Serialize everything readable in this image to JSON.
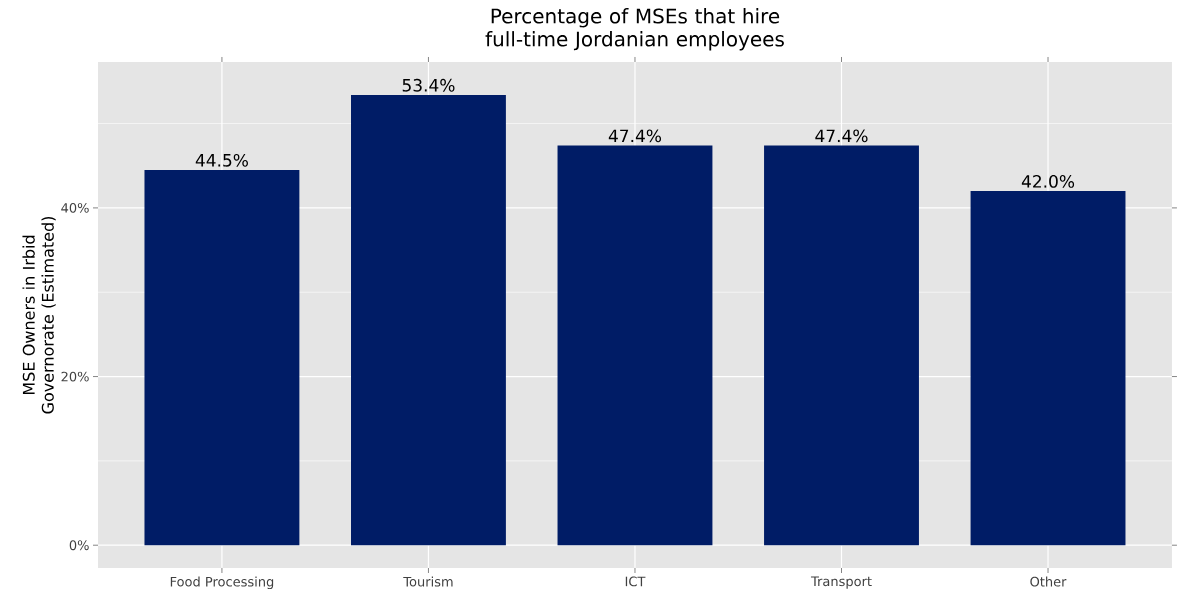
{
  "chart_data": {
    "type": "bar",
    "title": "Percentage of MSEs that hire full-time Jordanian employees",
    "ylabel": "MSE Owners in Irbid Governorate (Estimated)",
    "categories": [
      "Food Processing",
      "Tourism",
      "ICT",
      "Transport",
      "Other"
    ],
    "values": [
      44.5,
      53.4,
      47.4,
      47.4,
      42.0
    ],
    "value_labels": [
      "44.5%",
      "53.4%",
      "47.4%",
      "47.4%",
      "42.0%"
    ],
    "color": "#001c66",
    "ylim": [
      -2.7,
      57.3
    ],
    "yticks": [
      {
        "value": 0,
        "label": "0%"
      },
      {
        "value": 10,
        "label": null
      },
      {
        "value": 20,
        "label": "20%"
      },
      {
        "value": 30,
        "label": null
      },
      {
        "value": 40,
        "label": "40%"
      },
      {
        "value": 50,
        "label": null
      }
    ],
    "grid": true
  }
}
